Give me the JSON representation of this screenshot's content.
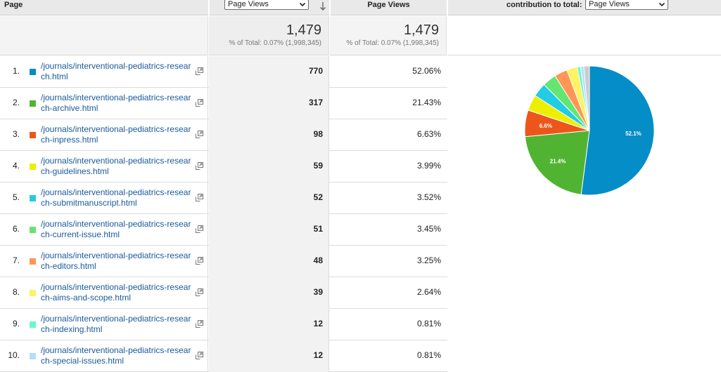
{
  "header": {
    "page_label": "Page",
    "primary_metric_select": "Page Views",
    "secondary_metric_label": "Page Views",
    "contribution_label": "contribution to total:",
    "contribution_select": "Page Views"
  },
  "summary": {
    "pv1_value": "1,479",
    "pv1_sub": "% of Total: 0.07% (1,998,345)",
    "pv2_value": "1,479",
    "pv2_sub": "% of Total: 0.07% (1,998,345)"
  },
  "rows": [
    {
      "index": "1.",
      "url": "/journals/interventional-pediatrics-research.html",
      "views": "770",
      "pct": "52.06%",
      "color": "#058dc7"
    },
    {
      "index": "2.",
      "url": "/journals/interventional-pediatrics-research-archive.html",
      "views": "317",
      "pct": "21.43%",
      "color": "#50b432"
    },
    {
      "index": "3.",
      "url": "/journals/interventional-pediatrics-research-inpress.html",
      "views": "98",
      "pct": "6.63%",
      "color": "#ed561b"
    },
    {
      "index": "4.",
      "url": "/journals/interventional-pediatrics-research-guidelines.html",
      "views": "59",
      "pct": "3.99%",
      "color": "#edef00"
    },
    {
      "index": "5.",
      "url": "/journals/interventional-pediatrics-research-submitmanuscript.html",
      "views": "52",
      "pct": "3.52%",
      "color": "#24cbe5"
    },
    {
      "index": "6.",
      "url": "/journals/interventional-pediatrics-research-current-issue.html",
      "views": "51",
      "pct": "3.45%",
      "color": "#64e572"
    },
    {
      "index": "7.",
      "url": "/journals/interventional-pediatrics-research-editors.html",
      "views": "48",
      "pct": "3.25%",
      "color": "#ff9655"
    },
    {
      "index": "8.",
      "url": "/journals/interventional-pediatrics-research-aims-and-scope.html",
      "views": "39",
      "pct": "2.64%",
      "color": "#fff263"
    },
    {
      "index": "9.",
      "url": "/journals/interventional-pediatrics-research-indexing.html",
      "views": "12",
      "pct": "0.81%",
      "color": "#6af9c4"
    },
    {
      "index": "10.",
      "url": "/journals/interventional-pediatrics-research-special-issues.html",
      "views": "12",
      "pct": "0.81%",
      "color": "#b2deff"
    }
  ],
  "chart_data": {
    "type": "pie",
    "slices": [
      {
        "value": 52.06,
        "label": "52.1%",
        "color": "#058dc7"
      },
      {
        "value": 21.43,
        "label": "21.4%",
        "color": "#50b432"
      },
      {
        "value": 6.63,
        "label": "6.6%",
        "color": "#ed561b"
      },
      {
        "value": 3.99,
        "label": "",
        "color": "#edef00"
      },
      {
        "value": 3.52,
        "label": "",
        "color": "#24cbe5"
      },
      {
        "value": 3.45,
        "label": "",
        "color": "#64e572"
      },
      {
        "value": 3.25,
        "label": "",
        "color": "#ff9655"
      },
      {
        "value": 2.64,
        "label": "",
        "color": "#fff263"
      },
      {
        "value": 0.81,
        "label": "",
        "color": "#6af9c4"
      },
      {
        "value": 0.81,
        "label": "",
        "color": "#b2deff"
      },
      {
        "value": 1.41,
        "label": "",
        "color": "#cccccc"
      }
    ]
  }
}
